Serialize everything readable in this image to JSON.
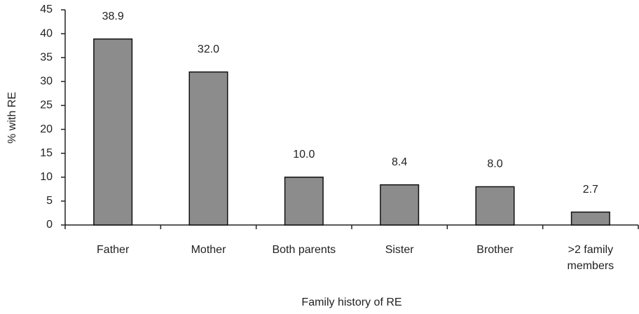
{
  "chart_data": {
    "type": "bar",
    "x_label": "Family history of RE",
    "y_label": "% with RE",
    "categories": [
      "Father",
      "Mother",
      "Both parents",
      "Sister",
      "Brother",
      ">2 family members"
    ],
    "values": [
      38.9,
      32.0,
      10.0,
      8.4,
      8.0,
      2.7
    ],
    "value_labels": [
      "38.9",
      "32.0",
      "10.0",
      "8.4",
      "8.0",
      "2.7"
    ],
    "color": "#8c8c8c",
    "ylim": [
      0,
      45
    ],
    "yticks": [
      0,
      5,
      10,
      15,
      20,
      25,
      30,
      35,
      40,
      45
    ],
    "grid": false
  }
}
